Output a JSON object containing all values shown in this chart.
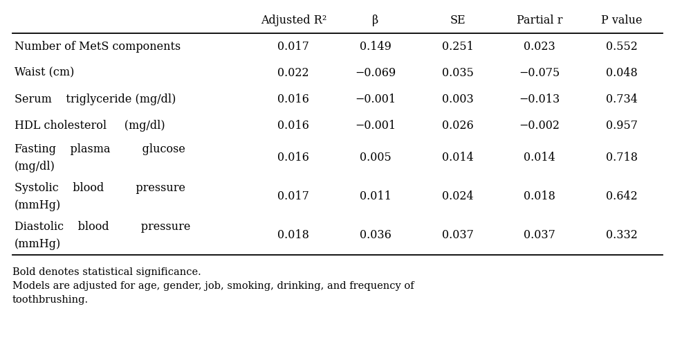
{
  "col_headers": [
    "",
    "Adjusted R²",
    "β",
    "SE",
    "Partial r",
    "P value"
  ],
  "rows": [
    {
      "label_lines": [
        "Number of MetS components"
      ],
      "values": [
        "0.017",
        "0.149",
        "0.251",
        "0.023",
        "0.552"
      ],
      "bold_pvalue": false,
      "two_line": false
    },
    {
      "label_lines": [
        "Waist (cm)"
      ],
      "values": [
        "0.022",
        "−0.069",
        "0.035",
        "−0.075",
        "0.048"
      ],
      "bold_pvalue": false,
      "two_line": false
    },
    {
      "label_lines": [
        "Serum    triglyceride (mg/dl)"
      ],
      "values": [
        "0.016",
        "−0.001",
        "0.003",
        "−0.013",
        "0.734"
      ],
      "bold_pvalue": false,
      "two_line": false
    },
    {
      "label_lines": [
        "HDL cholesterol     (mg/dl)"
      ],
      "values": [
        "0.016",
        "−0.001",
        "0.026",
        "−0.002",
        "0.957"
      ],
      "bold_pvalue": false,
      "two_line": false
    },
    {
      "label_lines": [
        "Fasting    plasma         glucose",
        "(mg/dl)"
      ],
      "values": [
        "0.016",
        "0.005",
        "0.014",
        "0.014",
        "0.718"
      ],
      "bold_pvalue": false,
      "two_line": true
    },
    {
      "label_lines": [
        "Systolic    blood         pressure",
        "(mmHg)"
      ],
      "values": [
        "0.017",
        "0.011",
        "0.024",
        "0.018",
        "0.642"
      ],
      "bold_pvalue": false,
      "two_line": true
    },
    {
      "label_lines": [
        "Diastolic    blood         pressure",
        "(mmHg)"
      ],
      "values": [
        "0.018",
        "0.036",
        "0.037",
        "0.037",
        "0.332"
      ],
      "bold_pvalue": false,
      "two_line": true
    }
  ],
  "footnotes": [
    "Bold denotes statistical significance.",
    "Models are adjusted for age, gender, job, smoking, drinking, and frequency of",
    "toothbrushing."
  ],
  "font_family": "serif",
  "font_size": 11.5,
  "header_font_size": 11.5,
  "footnote_font_size": 10.5,
  "bg_color": "#ffffff",
  "text_color": "#000000"
}
